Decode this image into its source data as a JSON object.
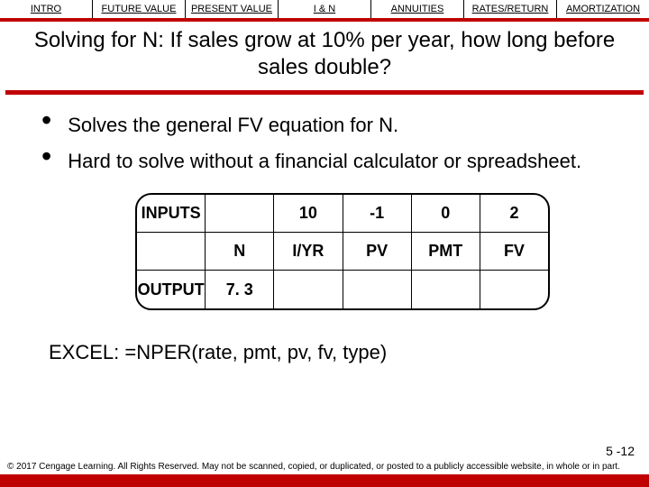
{
  "nav": {
    "items": [
      {
        "label": "INTRO"
      },
      {
        "label": "FUTURE VALUE"
      },
      {
        "label": "PRESENT VALUE"
      },
      {
        "label": "I & N"
      },
      {
        "label": "ANNUITIES"
      },
      {
        "label": "RATES/RETURN"
      },
      {
        "label": "AMORTIZATION"
      }
    ]
  },
  "title": "Solving for N:  If sales grow at 10% per year, how long before sales double?",
  "bullets": [
    "Solves the general FV equation for N.",
    "Hard to solve without a financial calculator or spreadsheet."
  ],
  "calc": {
    "row1": [
      "INPUTS",
      "",
      "10",
      "-1",
      "0",
      "2"
    ],
    "row2": [
      "",
      "N",
      "I/YR",
      "PV",
      "PMT",
      "FV"
    ],
    "row3": [
      "OUTPUT",
      "7. 3",
      "",
      "",
      "",
      ""
    ]
  },
  "excel": "EXCEL:  =NPER(rate, pmt, pv, fv, type)",
  "page_num": "5 -12",
  "copyright": "© 2017 Cengage Learning. All Rights Reserved. May not be scanned, copied, or duplicated, or posted to a publicly accessible website, in whole or in part.",
  "colors": {
    "accent": "#c00000",
    "bg": "#ffffff",
    "text": "#000000"
  }
}
